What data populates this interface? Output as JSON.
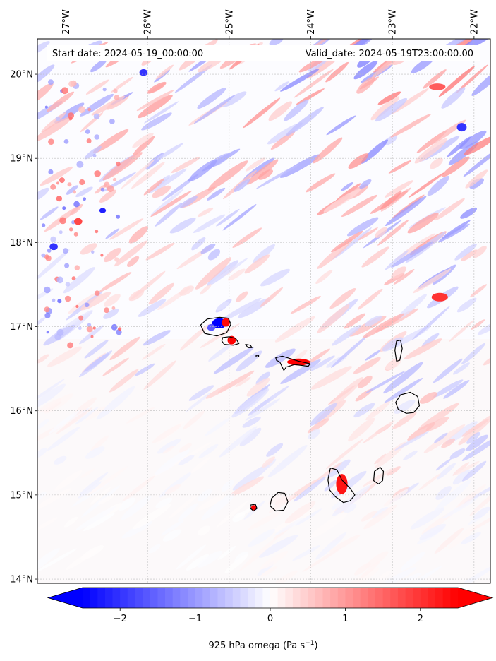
{
  "header": {
    "start_date": "Start date: 2024-05-19_00:00:00",
    "valid_date": "Valid_date: 2024-05-19T23:00:00.00"
  },
  "map": {
    "lon_range": [
      -27.35,
      -21.8
    ],
    "lat_range": [
      13.95,
      20.42
    ],
    "grid": true,
    "lon_ticks": [
      {
        "value": -27,
        "label": "27°W"
      },
      {
        "value": -26,
        "label": "26°W"
      },
      {
        "value": -25,
        "label": "25°W"
      },
      {
        "value": -24,
        "label": "24°W"
      },
      {
        "value": -23,
        "label": "23°W"
      },
      {
        "value": -22,
        "label": "22°W"
      }
    ],
    "lat_ticks": [
      {
        "value": 20,
        "label": "20°N"
      },
      {
        "value": 19,
        "label": "19°N"
      },
      {
        "value": 18,
        "label": "18°N"
      },
      {
        "value": 17,
        "label": "17°N"
      },
      {
        "value": 16,
        "label": "16°N"
      },
      {
        "value": 15,
        "label": "15°N"
      },
      {
        "value": 14,
        "label": "14°N"
      }
    ],
    "field": "925 hPa omega",
    "islands": [
      {
        "name": "Santo Antão",
        "outline": [
          [
            -25.35,
            17.02
          ],
          [
            -25.27,
            17.09
          ],
          [
            -25.12,
            17.11
          ],
          [
            -25.01,
            17.1
          ],
          [
            -24.98,
            17.03
          ],
          [
            -25.03,
            16.93
          ],
          [
            -25.15,
            16.89
          ],
          [
            -25.3,
            16.92
          ]
        ]
      },
      {
        "name": "São Vicente",
        "outline": [
          [
            -25.08,
            16.87
          ],
          [
            -25.0,
            16.88
          ],
          [
            -24.92,
            16.86
          ],
          [
            -24.88,
            16.8
          ],
          [
            -24.95,
            16.78
          ],
          [
            -25.06,
            16.79
          ],
          [
            -25.09,
            16.83
          ]
        ]
      },
      {
        "name": "Santa Luzia",
        "outline": [
          [
            -24.8,
            16.79
          ],
          [
            -24.74,
            16.78
          ],
          [
            -24.72,
            16.75
          ],
          [
            -24.77,
            16.75
          ]
        ]
      },
      {
        "name": "Branco",
        "outline": [
          [
            -24.67,
            16.66
          ],
          [
            -24.64,
            16.66
          ],
          [
            -24.64,
            16.64
          ],
          [
            -24.67,
            16.64
          ]
        ]
      },
      {
        "name": "São Nicolau",
        "outline": [
          [
            -24.43,
            16.63
          ],
          [
            -24.35,
            16.65
          ],
          [
            -24.25,
            16.62
          ],
          [
            -24.15,
            16.59
          ],
          [
            -24.01,
            16.56
          ],
          [
            -24.03,
            16.53
          ],
          [
            -24.2,
            16.55
          ],
          [
            -24.3,
            16.52
          ],
          [
            -24.33,
            16.48
          ],
          [
            -24.38,
            16.58
          ],
          [
            -24.42,
            16.6
          ]
        ]
      },
      {
        "name": "Sal",
        "outline": [
          [
            -22.95,
            16.83
          ],
          [
            -22.9,
            16.84
          ],
          [
            -22.88,
            16.74
          ],
          [
            -22.91,
            16.6
          ],
          [
            -22.95,
            16.59
          ],
          [
            -22.97,
            16.72
          ]
        ]
      },
      {
        "name": "Boa Vista",
        "outline": [
          [
            -22.9,
            16.19
          ],
          [
            -22.78,
            16.22
          ],
          [
            -22.69,
            16.17
          ],
          [
            -22.67,
            16.06
          ],
          [
            -22.74,
            15.98
          ],
          [
            -22.83,
            15.97
          ],
          [
            -22.93,
            16.02
          ],
          [
            -22.96,
            16.1
          ]
        ]
      },
      {
        "name": "Maio",
        "outline": [
          [
            -23.22,
            15.28
          ],
          [
            -23.15,
            15.33
          ],
          [
            -23.11,
            15.28
          ],
          [
            -23.12,
            15.17
          ],
          [
            -23.17,
            15.13
          ],
          [
            -23.23,
            15.17
          ]
        ]
      },
      {
        "name": "Santiago",
        "outline": [
          [
            -23.76,
            15.32
          ],
          [
            -23.68,
            15.3
          ],
          [
            -23.62,
            15.18
          ],
          [
            -23.52,
            15.08
          ],
          [
            -23.46,
            15.0
          ],
          [
            -23.52,
            14.93
          ],
          [
            -23.6,
            14.91
          ],
          [
            -23.7,
            14.98
          ],
          [
            -23.77,
            15.06
          ],
          [
            -23.79,
            15.18
          ]
        ]
      },
      {
        "name": "Fogo",
        "outline": [
          [
            -24.48,
            14.96
          ],
          [
            -24.4,
            15.03
          ],
          [
            -24.32,
            15.02
          ],
          [
            -24.28,
            14.92
          ],
          [
            -24.33,
            14.82
          ],
          [
            -24.43,
            14.81
          ],
          [
            -24.5,
            14.87
          ]
        ]
      },
      {
        "name": "Brava",
        "outline": [
          [
            -24.74,
            14.88
          ],
          [
            -24.68,
            14.89
          ],
          [
            -24.66,
            14.84
          ],
          [
            -24.7,
            14.81
          ],
          [
            -24.74,
            14.84
          ]
        ]
      }
    ],
    "highlights": [
      {
        "lon": -25.12,
        "lat": 17.04,
        "value": -2.5,
        "rx": 0.09,
        "ry": 0.06
      },
      {
        "lon": -25.04,
        "lat": 17.05,
        "value": 2.4,
        "rx": 0.05,
        "ry": 0.05
      },
      {
        "lon": -25.22,
        "lat": 16.99,
        "value": -1.6,
        "rx": 0.05,
        "ry": 0.04
      },
      {
        "lon": -24.97,
        "lat": 16.84,
        "value": 2.6,
        "rx": 0.05,
        "ry": 0.05
      },
      {
        "lon": -24.15,
        "lat": 16.58,
        "value": 2.8,
        "rx": 0.14,
        "ry": 0.04
      },
      {
        "lon": -23.62,
        "lat": 15.13,
        "value": 2.3,
        "rx": 0.07,
        "ry": 0.12
      },
      {
        "lon": -24.7,
        "lat": 14.85,
        "value": 2.5,
        "rx": 0.03,
        "ry": 0.03
      },
      {
        "lon": -26.55,
        "lat": 18.38,
        "value": -2.2,
        "rx": 0.04,
        "ry": 0.03
      },
      {
        "lon": -27.15,
        "lat": 17.95,
        "value": -2.0,
        "rx": 0.05,
        "ry": 0.04
      },
      {
        "lon": -26.85,
        "lat": 18.25,
        "value": 1.8,
        "rx": 0.05,
        "ry": 0.04
      },
      {
        "lon": -26.05,
        "lat": 20.02,
        "value": -2.0,
        "rx": 0.05,
        "ry": 0.04
      },
      {
        "lon": -22.42,
        "lat": 17.35,
        "value": 2.0,
        "rx": 0.1,
        "ry": 0.05
      },
      {
        "lon": -22.15,
        "lat": 19.37,
        "value": -2.0,
        "rx": 0.06,
        "ry": 0.05
      },
      {
        "lon": -22.45,
        "lat": 19.85,
        "value": 1.6,
        "rx": 0.1,
        "ry": 0.04
      }
    ]
  },
  "colorbar": {
    "label_main": "925 hPa omega (Pa s",
    "label_sup": "−1",
    "label_end": ")",
    "range": [
      -2.5,
      2.5
    ],
    "extend": "both",
    "ticks": [
      {
        "value": -2,
        "label": "−2"
      },
      {
        "value": -1,
        "label": "−1"
      },
      {
        "value": 0,
        "label": "0"
      },
      {
        "value": 1,
        "label": "1"
      },
      {
        "value": 2,
        "label": "2"
      }
    ],
    "color_neg": "#0000ff",
    "color_zero": "#ffffff",
    "color_pos": "#ff0000"
  }
}
